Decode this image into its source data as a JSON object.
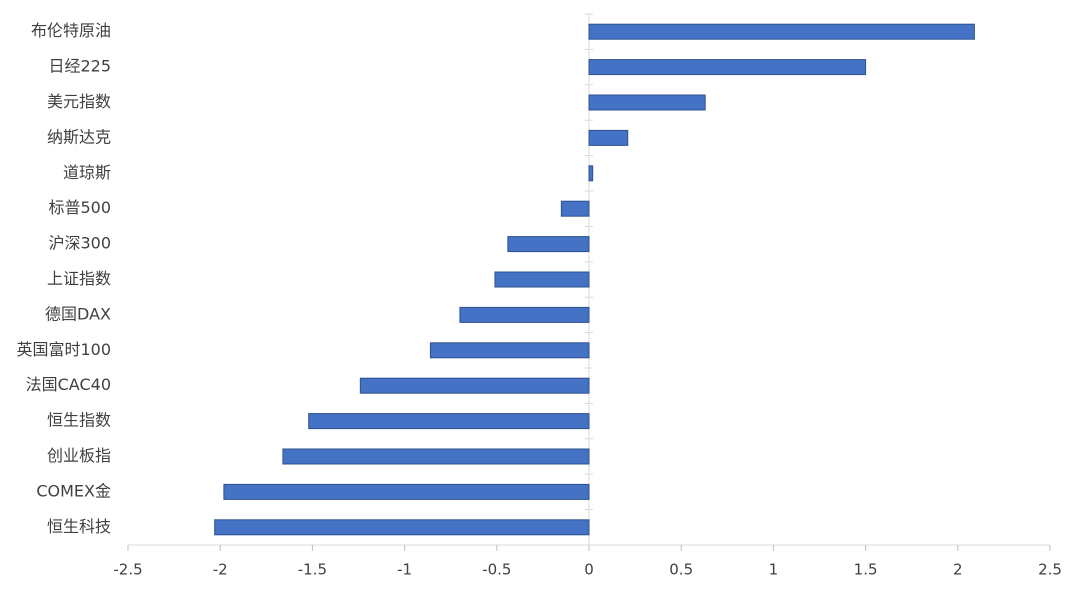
{
  "chart_data": {
    "type": "hbar",
    "categories": [
      "布伦特原油",
      "日经225",
      "美元指数",
      "纳斯达克",
      "道琼斯",
      "标普500",
      "沪深300",
      "上证指数",
      "德国DAX",
      "英国富时100",
      "法国CAC40",
      "恒生指数",
      "创业板指",
      "COMEX金",
      "恒生科技"
    ],
    "values": [
      2.09,
      1.5,
      0.63,
      0.21,
      0.02,
      -0.15,
      -0.44,
      -0.51,
      -0.7,
      -0.86,
      -1.24,
      -1.52,
      -1.66,
      -1.98,
      -2.03
    ],
    "color": "#4472c4",
    "xlim": [
      -2.5,
      2.5
    ],
    "xticks": [
      -2.5,
      -2,
      -1.5,
      -1,
      -0.5,
      0,
      0.5,
      1,
      1.5,
      2,
      2.5
    ]
  }
}
